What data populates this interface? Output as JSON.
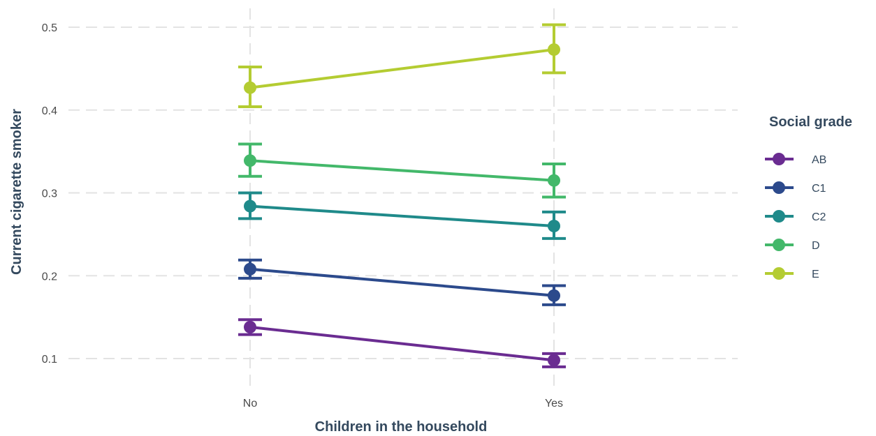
{
  "chart_data": {
    "type": "line",
    "xlabel": "Children in the household",
    "ylabel": "Current cigarette smoker",
    "categories": [
      "No",
      "Yes"
    ],
    "ylim": [
      0.06,
      0.52
    ],
    "yticks": [
      0.1,
      0.2,
      0.3,
      0.4,
      0.5
    ],
    "ytick_labels": [
      "0.1",
      "0.2",
      "0.3",
      "0.4",
      "0.5"
    ],
    "grid": true,
    "error_bars": true,
    "legend": {
      "title": "Social grade",
      "position": "right"
    },
    "series": [
      {
        "name": "AB",
        "color": "#6a2c91",
        "values": [
          0.138,
          0.098
        ],
        "lower": [
          0.129,
          0.09
        ],
        "upper": [
          0.147,
          0.106
        ]
      },
      {
        "name": "C1",
        "color": "#2c4a8c",
        "values": [
          0.208,
          0.176
        ],
        "lower": [
          0.197,
          0.165
        ],
        "upper": [
          0.219,
          0.188
        ]
      },
      {
        "name": "C2",
        "color": "#1f8a8a",
        "values": [
          0.284,
          0.26
        ],
        "lower": [
          0.269,
          0.245
        ],
        "upper": [
          0.3,
          0.277
        ]
      },
      {
        "name": "D",
        "color": "#43b86a",
        "values": [
          0.339,
          0.315
        ],
        "lower": [
          0.32,
          0.295
        ],
        "upper": [
          0.359,
          0.335
        ]
      },
      {
        "name": "E",
        "color": "#b4cc32",
        "values": [
          0.427,
          0.473
        ],
        "lower": [
          0.404,
          0.445
        ],
        "upper": [
          0.452,
          0.503
        ]
      }
    ]
  }
}
